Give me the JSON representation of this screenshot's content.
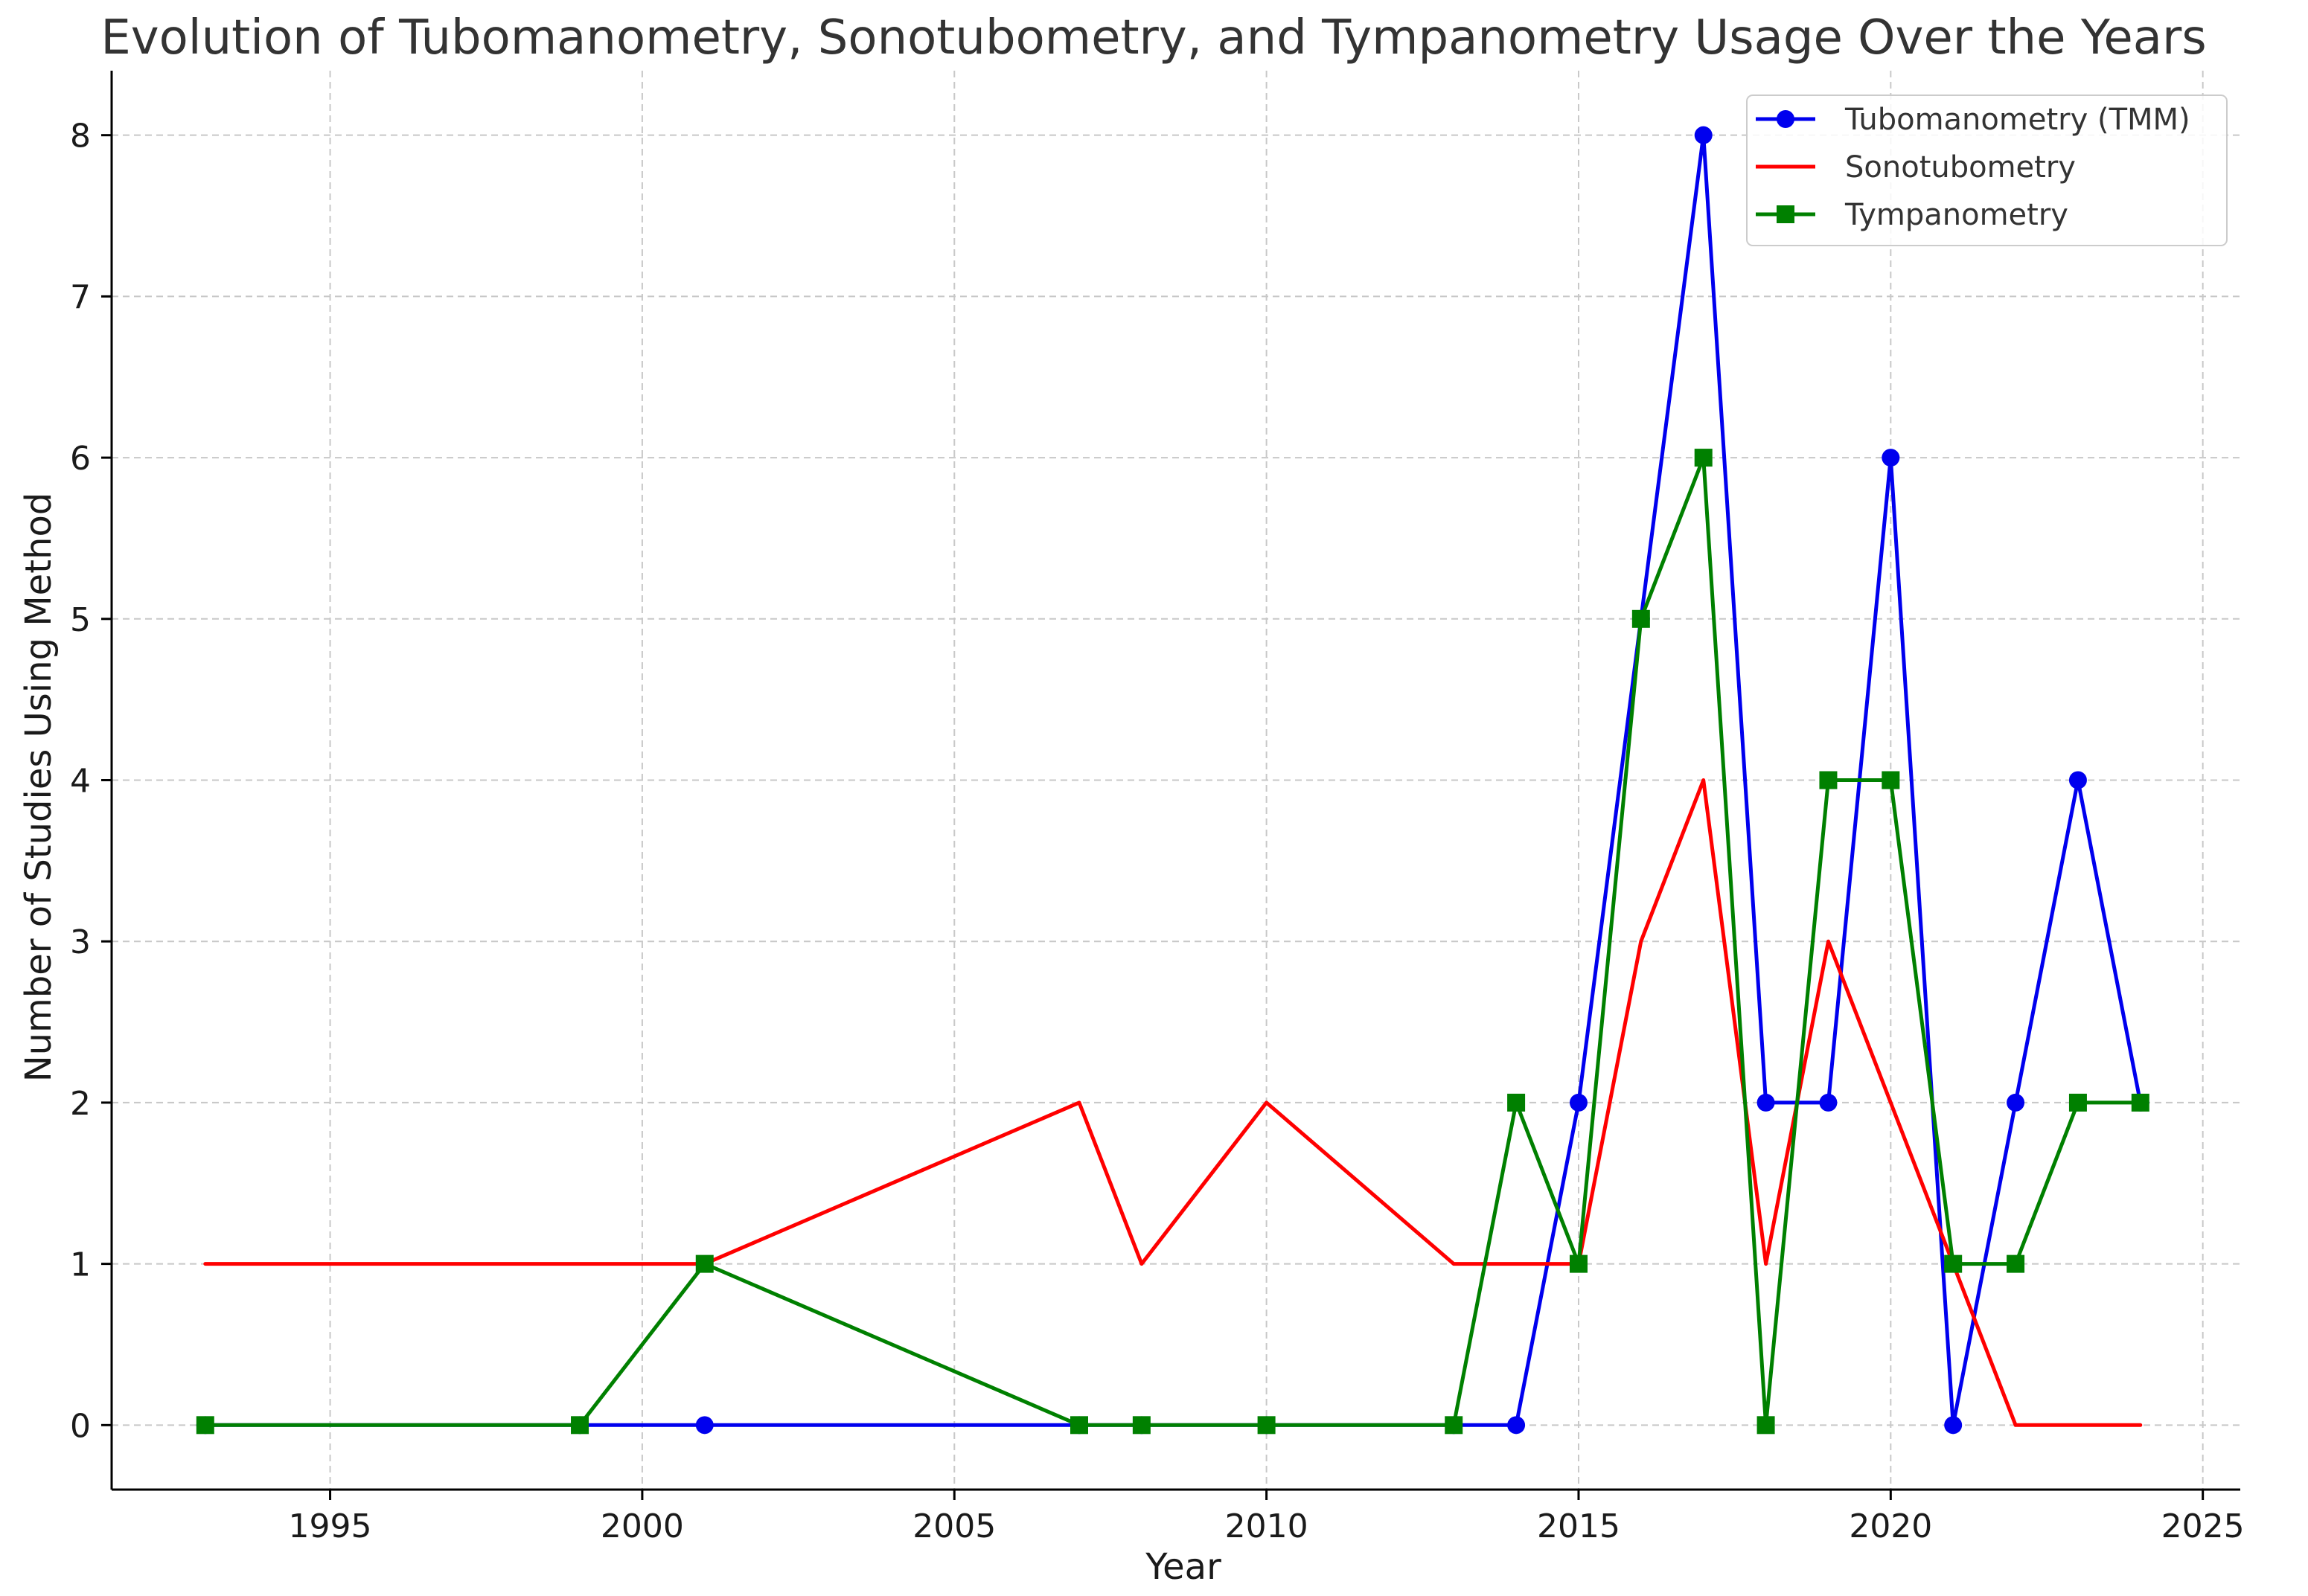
{
  "chart_data": {
    "type": "line",
    "title": "Evolution of Tubomanometry, Sonotubometry, and Tympanometry Usage Over the Years",
    "xlabel": "Year",
    "ylabel": "Number of Studies Using Method",
    "xlim": [
      1991.5,
      2025.6
    ],
    "ylim": [
      -0.4,
      8.4
    ],
    "xticks": [
      1995,
      2000,
      2005,
      2010,
      2015,
      2020,
      2025
    ],
    "yticks": [
      0,
      1,
      2,
      3,
      4,
      5,
      6,
      7,
      8
    ],
    "grid": true,
    "legend_position": "top-right",
    "series": [
      {
        "name": "Tubomanometry (TMM)",
        "color": "#0000ee",
        "marker": "circle",
        "x": [
          1993,
          1999,
          2001,
          2007,
          2008,
          2010,
          2013,
          2014,
          2015,
          2016,
          2017,
          2018,
          2019,
          2020,
          2021,
          2022,
          2023,
          2024
        ],
        "y": [
          0,
          0,
          0,
          0,
          0,
          0,
          0,
          0,
          2,
          5,
          8,
          2,
          2,
          6,
          0,
          2,
          4,
          2
        ]
      },
      {
        "name": "Sonotubometry",
        "color": "#ff0000",
        "marker": "none",
        "x": [
          1993,
          1999,
          2001,
          2007,
          2008,
          2010,
          2013,
          2014,
          2015,
          2016,
          2017,
          2018,
          2019,
          2020,
          2021,
          2022,
          2023,
          2024
        ],
        "y": [
          1,
          1,
          1,
          2,
          1,
          2,
          1,
          1,
          1,
          3,
          4,
          1,
          3,
          2,
          1,
          0,
          0,
          0
        ]
      },
      {
        "name": "Tympanometry",
        "color": "#008000",
        "marker": "square",
        "x": [
          1993,
          1999,
          2001,
          2007,
          2008,
          2010,
          2013,
          2014,
          2015,
          2016,
          2017,
          2018,
          2019,
          2020,
          2021,
          2022,
          2023,
          2024
        ],
        "y": [
          0,
          0,
          1,
          0,
          0,
          0,
          0,
          2,
          1,
          5,
          6,
          0,
          4,
          4,
          1,
          1,
          2,
          2
        ]
      }
    ]
  }
}
